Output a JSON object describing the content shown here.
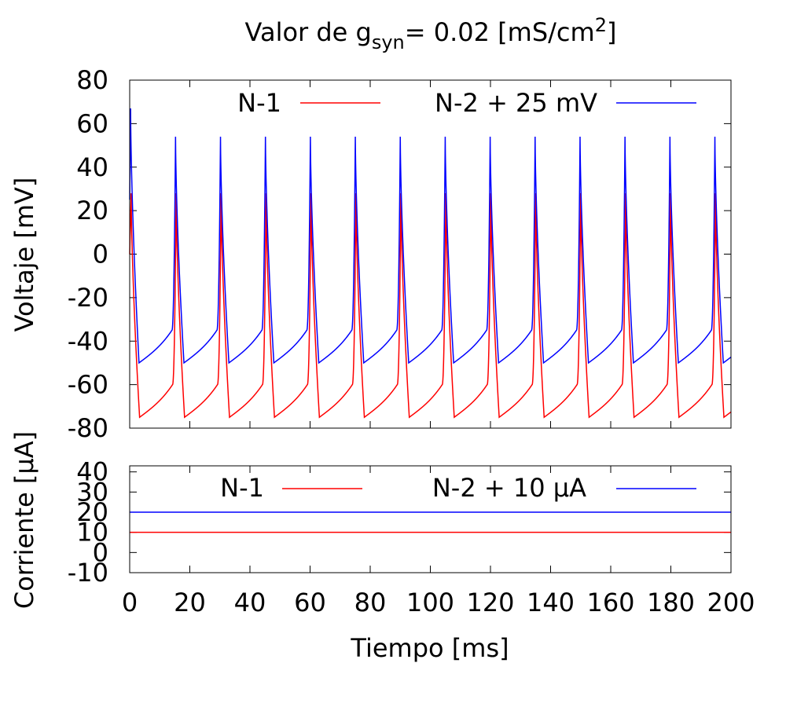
{
  "chart_data": [
    {
      "type": "line",
      "title_parts": {
        "prefix": "Valor de g",
        "sub": "syn",
        "middle": "= 0.02 [mS/cm",
        "sup": "2",
        "suffix": "]"
      },
      "xlabel": "Tiempo [ms]",
      "ylabel": "Voltaje [mV]",
      "xlim": [
        0,
        200
      ],
      "ylim": [
        -80,
        80
      ],
      "yticks": [
        "80",
        "60",
        "40",
        "20",
        "0",
        "-20",
        "-40",
        "-60",
        "-80"
      ],
      "xtick_labels_shown": false,
      "legend_position": "top",
      "series": [
        {
          "name": "N-1",
          "color": "#ff0000",
          "model": "spike_train",
          "period": 14.95,
          "first_spike": 0.5,
          "peak": 28,
          "trough": -75,
          "pre_spike": -60,
          "start_value": 0,
          "end_value": -71
        },
        {
          "name": "N-2 + 25 mV",
          "color": "#0000ff",
          "model": "spike_train",
          "period": 14.95,
          "first_spike": 0.3,
          "first_peak": 67,
          "peak": 54,
          "trough": -50,
          "pre_spike": -35,
          "start_value": 25,
          "end_value": -46
        }
      ]
    },
    {
      "type": "line",
      "xlabel": "Tiempo [ms]",
      "ylabel": "Corriente [μA]",
      "xlim": [
        0,
        200
      ],
      "ylim": [
        -10,
        43
      ],
      "yticks": [
        "40",
        "30",
        "20",
        "10",
        "0",
        "-10"
      ],
      "xticks": [
        "0",
        "20",
        "40",
        "60",
        "80",
        "100",
        "120",
        "140",
        "160",
        "180",
        "200"
      ],
      "legend_position": "top",
      "series": [
        {
          "name": "N-1",
          "color": "#ff0000",
          "x": [
            0,
            200
          ],
          "values": [
            10,
            10
          ]
        },
        {
          "name": "N-2 + 10 μA",
          "color": "#0000ff",
          "x": [
            0,
            200
          ],
          "values": [
            20,
            20
          ]
        }
      ]
    }
  ]
}
